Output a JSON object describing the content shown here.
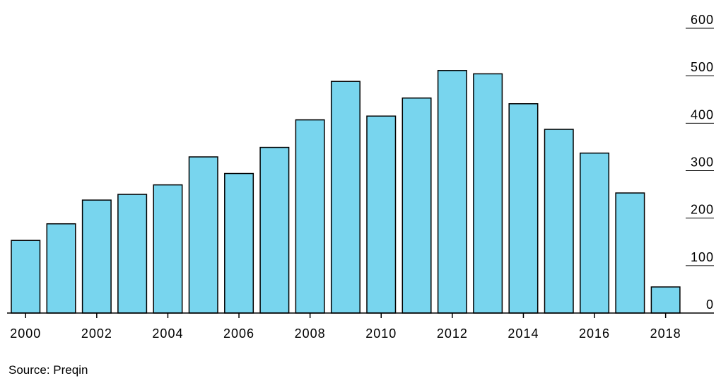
{
  "source": "Source: Preqin",
  "chart_data": {
    "type": "bar",
    "categories": [
      "2000",
      "2001",
      "2002",
      "2003",
      "2004",
      "2005",
      "2006",
      "2007",
      "2008",
      "2009",
      "2010",
      "2011",
      "2012",
      "2013",
      "2014",
      "2015",
      "2016",
      "2017",
      "2018"
    ],
    "values": [
      153,
      188,
      238,
      250,
      270,
      329,
      294,
      349,
      407,
      488,
      415,
      453,
      511,
      504,
      441,
      387,
      337,
      253,
      55
    ],
    "x_tick_labels": [
      "2000",
      "2002",
      "2004",
      "2006",
      "2008",
      "2010",
      "2012",
      "2014",
      "2016",
      "2018"
    ],
    "y_ticks": [
      0,
      100,
      200,
      300,
      400,
      500,
      600
    ],
    "ylim": [
      0,
      600
    ],
    "y_axis_position": "right",
    "bar_color": "#78d5ee",
    "bar_edge_color": "#000000",
    "grid": false,
    "title": "",
    "xlabel": "",
    "ylabel": ""
  }
}
